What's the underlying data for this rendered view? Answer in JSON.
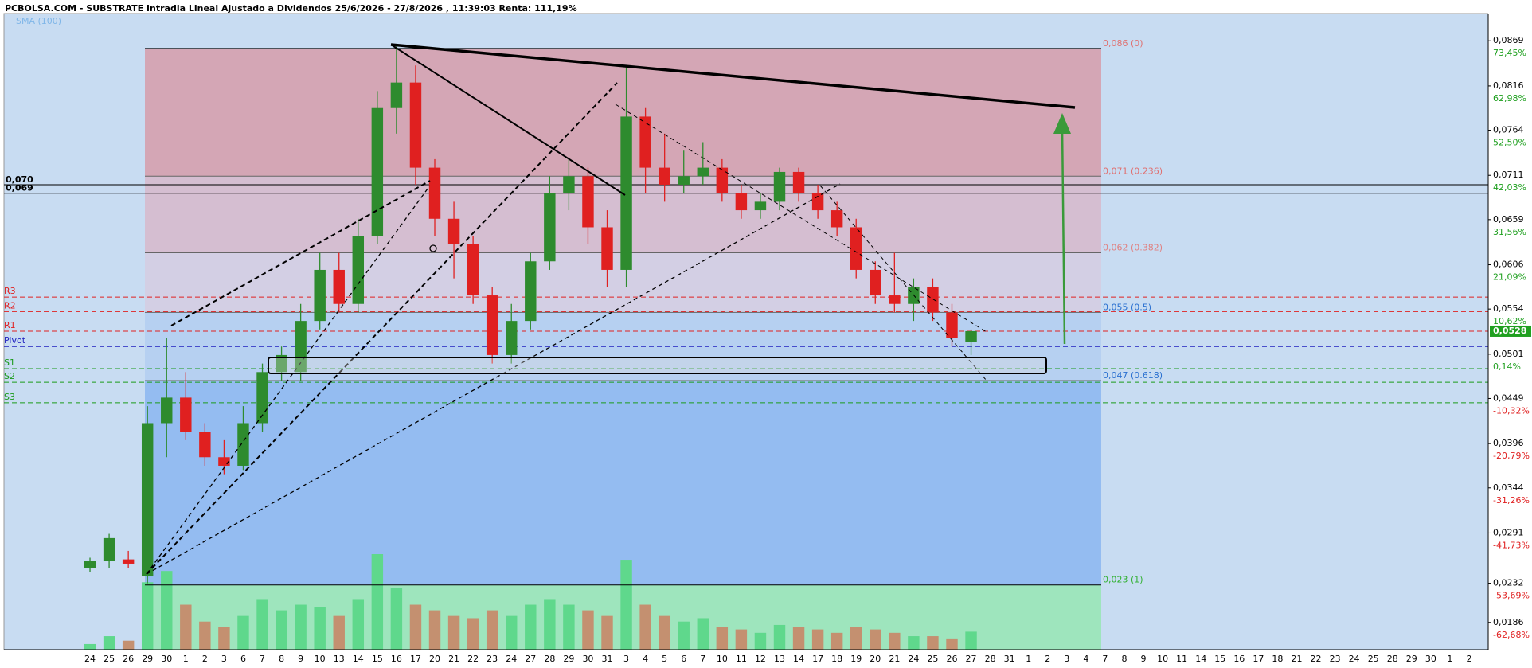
{
  "chart_data": {
    "type": "candlestick",
    "title": "PCBOLSA.COM - SUBSTRATE Intradia Lineal Ajustado a Dividendos 25/6/2026 - 27/8/2026 , 11:39:03 Renta: 111,19%",
    "indicator_label": "SMA (100)",
    "categories": [
      "24",
      "25",
      "26",
      "29",
      "30",
      "1",
      "2",
      "3",
      "6",
      "7",
      "8",
      "9",
      "10",
      "13",
      "14",
      "15",
      "16",
      "17",
      "20",
      "21",
      "22",
      "23",
      "24",
      "27",
      "28",
      "29",
      "30",
      "31",
      "3",
      "4",
      "5",
      "6",
      "7",
      "10",
      "11",
      "12",
      "13",
      "14",
      "17",
      "18",
      "19",
      "20",
      "21",
      "24",
      "25",
      "26",
      "27",
      "28",
      "31",
      "1",
      "2",
      "3",
      "4",
      "7",
      "8",
      "9",
      "10",
      "11",
      "14",
      "15",
      "16",
      "17",
      "18",
      "21",
      "22",
      "23",
      "24",
      "25",
      "28",
      "29",
      "30",
      "1",
      "2"
    ],
    "open": [
      0.025,
      0.0258,
      0.026,
      0.024,
      0.042,
      0.045,
      0.041,
      0.038,
      0.037,
      0.042,
      0.048,
      0.048,
      0.054,
      0.06,
      0.056,
      0.064,
      0.079,
      0.082,
      0.072,
      0.066,
      0.063,
      0.057,
      0.05,
      0.054,
      0.061,
      0.069,
      0.071,
      0.065,
      0.06,
      0.078,
      0.072,
      0.07,
      0.071,
      0.072,
      0.069,
      0.067,
      0.068,
      0.0715,
      0.069,
      0.067,
      0.065,
      0.06,
      0.057,
      0.056,
      0.058,
      0.055,
      0.0515,
      null,
      null,
      null,
      null,
      null,
      null,
      null,
      null,
      null,
      null,
      null,
      null,
      null,
      null,
      null,
      null,
      null,
      null,
      null,
      null,
      null,
      null,
      null,
      null,
      null,
      null
    ],
    "high": [
      0.0262,
      0.029,
      0.027,
      0.044,
      0.052,
      0.048,
      0.042,
      0.04,
      0.044,
      0.049,
      0.051,
      0.056,
      0.062,
      0.062,
      0.066,
      0.081,
      0.0865,
      0.084,
      0.073,
      0.068,
      0.064,
      0.058,
      0.056,
      0.062,
      0.071,
      0.073,
      0.072,
      0.067,
      0.084,
      0.079,
      0.076,
      0.074,
      0.075,
      0.073,
      0.07,
      0.069,
      0.072,
      0.072,
      0.07,
      0.068,
      0.066,
      0.061,
      0.062,
      0.059,
      0.059,
      0.056,
      0.053,
      null,
      null,
      null,
      null,
      null,
      null,
      null,
      null,
      null,
      null,
      null,
      null,
      null,
      null,
      null,
      null,
      null,
      null,
      null,
      null,
      null,
      null,
      null,
      null,
      null,
      null
    ],
    "low": [
      0.0245,
      0.025,
      0.025,
      0.0232,
      0.038,
      0.04,
      0.037,
      0.036,
      0.0365,
      0.041,
      0.047,
      0.047,
      0.053,
      0.055,
      0.055,
      0.063,
      0.076,
      0.07,
      0.064,
      0.059,
      0.056,
      0.049,
      0.049,
      0.053,
      0.06,
      0.067,
      0.063,
      0.058,
      0.058,
      0.069,
      0.068,
      0.069,
      0.07,
      0.068,
      0.066,
      0.066,
      0.067,
      0.068,
      0.066,
      0.064,
      0.059,
      0.056,
      0.055,
      0.054,
      0.054,
      0.051,
      0.05,
      null,
      null,
      null,
      null,
      null,
      null,
      null,
      null,
      null,
      null,
      null,
      null,
      null,
      null,
      null,
      null,
      null,
      null,
      null,
      null,
      null,
      null,
      null,
      null,
      null,
      null
    ],
    "close": [
      0.0258,
      0.0285,
      0.0255,
      0.042,
      0.045,
      0.041,
      0.038,
      0.037,
      0.042,
      0.048,
      0.05,
      0.054,
      0.06,
      0.056,
      0.064,
      0.079,
      0.082,
      0.072,
      0.066,
      0.063,
      0.057,
      0.05,
      0.054,
      0.061,
      0.069,
      0.071,
      0.065,
      0.06,
      0.078,
      0.072,
      0.07,
      0.071,
      0.072,
      0.069,
      0.067,
      0.068,
      0.0715,
      0.069,
      0.067,
      0.065,
      0.06,
      0.057,
      0.056,
      0.058,
      0.055,
      0.052,
      0.0528,
      null,
      null,
      null,
      null,
      null,
      null,
      null,
      null,
      null,
      null,
      null,
      null,
      null,
      null,
      null,
      null,
      null,
      null,
      null,
      null,
      null,
      null,
      null,
      null,
      null,
      null
    ],
    "volume": [
      5,
      12,
      8,
      60,
      70,
      40,
      25,
      20,
      30,
      45,
      35,
      40,
      38,
      30,
      45,
      85,
      55,
      40,
      35,
      30,
      28,
      35,
      30,
      40,
      45,
      40,
      35,
      30,
      80,
      40,
      30,
      25,
      28,
      20,
      18,
      15,
      22,
      20,
      18,
      15,
      20,
      18,
      15,
      12,
      12,
      10,
      16,
      null,
      null,
      null,
      null,
      null,
      null,
      null,
      null,
      null,
      null,
      null,
      null,
      null,
      null,
      null,
      null,
      null,
      null,
      null,
      null,
      null,
      null,
      null,
      null,
      null,
      null
    ],
    "up_color": "#2e8b2e",
    "down_color": "#e02020",
    "vol_up_color": "#5fd88c",
    "vol_down_color": "#c49070",
    "ylim": [
      0.0154,
      0.0901
    ],
    "yticks": [
      {
        "value": 0.0869,
        "label": "0,0869"
      },
      {
        "value": 0.0816,
        "label": "0,0816"
      },
      {
        "value": 0.0764,
        "label": "0,0764"
      },
      {
        "value": 0.0711,
        "label": "0,0711"
      },
      {
        "value": 0.0659,
        "label": "0,0659"
      },
      {
        "value": 0.0606,
        "label": "0,0606"
      },
      {
        "value": 0.0554,
        "label": "0,0554"
      },
      {
        "value": 0.0501,
        "label": "0,0501"
      },
      {
        "value": 0.0449,
        "label": "0,0449"
      },
      {
        "value": 0.0396,
        "label": "0,0396"
      },
      {
        "value": 0.0344,
        "label": "0,0344"
      },
      {
        "value": 0.0291,
        "label": "0,0291"
      },
      {
        "value": 0.0232,
        "label": "0,0232"
      },
      {
        "value": 0.0186,
        "label": "0,0186"
      }
    ],
    "change_labels": [
      "73,45%",
      "62,98%",
      "52,50%",
      "42,03%",
      "31,56%",
      "21,09%",
      "10,62%",
      "0,14%",
      "-10,32%",
      "-20,79%",
      "-31,26%",
      "-41,73%",
      "-53,69%",
      "-62,68%"
    ],
    "last_price": {
      "value": 0.0528,
      "label": "0,0528"
    },
    "fib_levels": [
      {
        "value": 0.086,
        "label": "0,086 (0)"
      },
      {
        "value": 0.071,
        "label": "0,071 (0.236)"
      },
      {
        "value": 0.062,
        "label": "0,062 (0.382)"
      },
      {
        "value": 0.055,
        "label": "0,055 (0.5)"
      },
      {
        "value": 0.047,
        "label": "0,047 (0.618)"
      },
      {
        "value": 0.023,
        "label": "0,023 (1)"
      }
    ],
    "pivots": [
      {
        "name": "R3",
        "value": 0.0568,
        "color": "#e02020"
      },
      {
        "name": "R2",
        "value": 0.0551,
        "color": "#e02020"
      },
      {
        "name": "R1",
        "value": 0.0528,
        "color": "#e02020"
      },
      {
        "name": "Pivot",
        "value": 0.051,
        "color": "#2020c0"
      },
      {
        "name": "S1",
        "value": 0.0484,
        "color": "#1a9a1a"
      },
      {
        "name": "S2",
        "value": 0.0468,
        "color": "#1a9a1a"
      },
      {
        "name": "S3",
        "value": 0.0444,
        "color": "#1a9a1a"
      }
    ],
    "levels": [
      {
        "value": 0.07,
        "label": "0,070"
      },
      {
        "value": 0.069,
        "label": "0,069"
      }
    ]
  }
}
